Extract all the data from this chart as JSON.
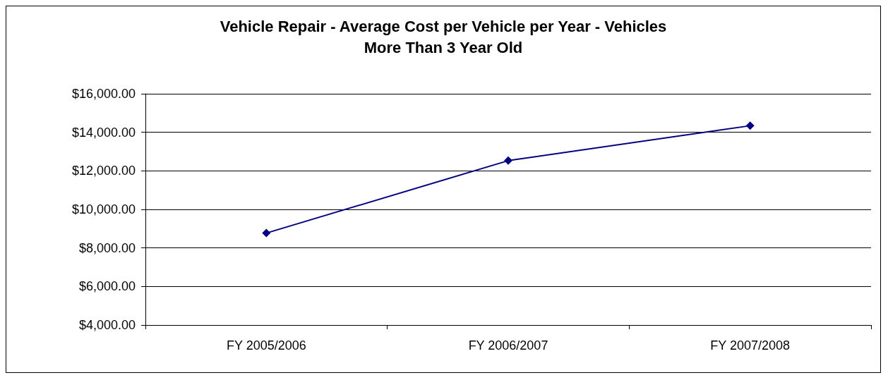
{
  "chart_data": {
    "type": "line",
    "title": "Vehicle Repair - Average Cost per Vehicle per Year - Vehicles\nMore Than 3 Year Old",
    "categories": [
      "FY 2005/2006",
      "FY 2006/2007",
      "FY 2007/2008"
    ],
    "series": [
      {
        "color": "#000080",
        "values": [
          8770,
          12530,
          14340
        ]
      }
    ],
    "ylim": [
      4000,
      16000
    ],
    "yticks": [
      {
        "value": 4000,
        "label": "$4,000.00"
      },
      {
        "value": 6000,
        "label": "$6,000.00"
      },
      {
        "value": 8000,
        "label": "$8,000.00"
      },
      {
        "value": 10000,
        "label": "$10,000.00"
      },
      {
        "value": 12000,
        "label": "$12,000.00"
      },
      {
        "value": 14000,
        "label": "$14,000.00"
      },
      {
        "value": 16000,
        "label": "$16,000.00"
      }
    ],
    "grid": "y",
    "marker": "diamond",
    "line_style": "solid"
  }
}
